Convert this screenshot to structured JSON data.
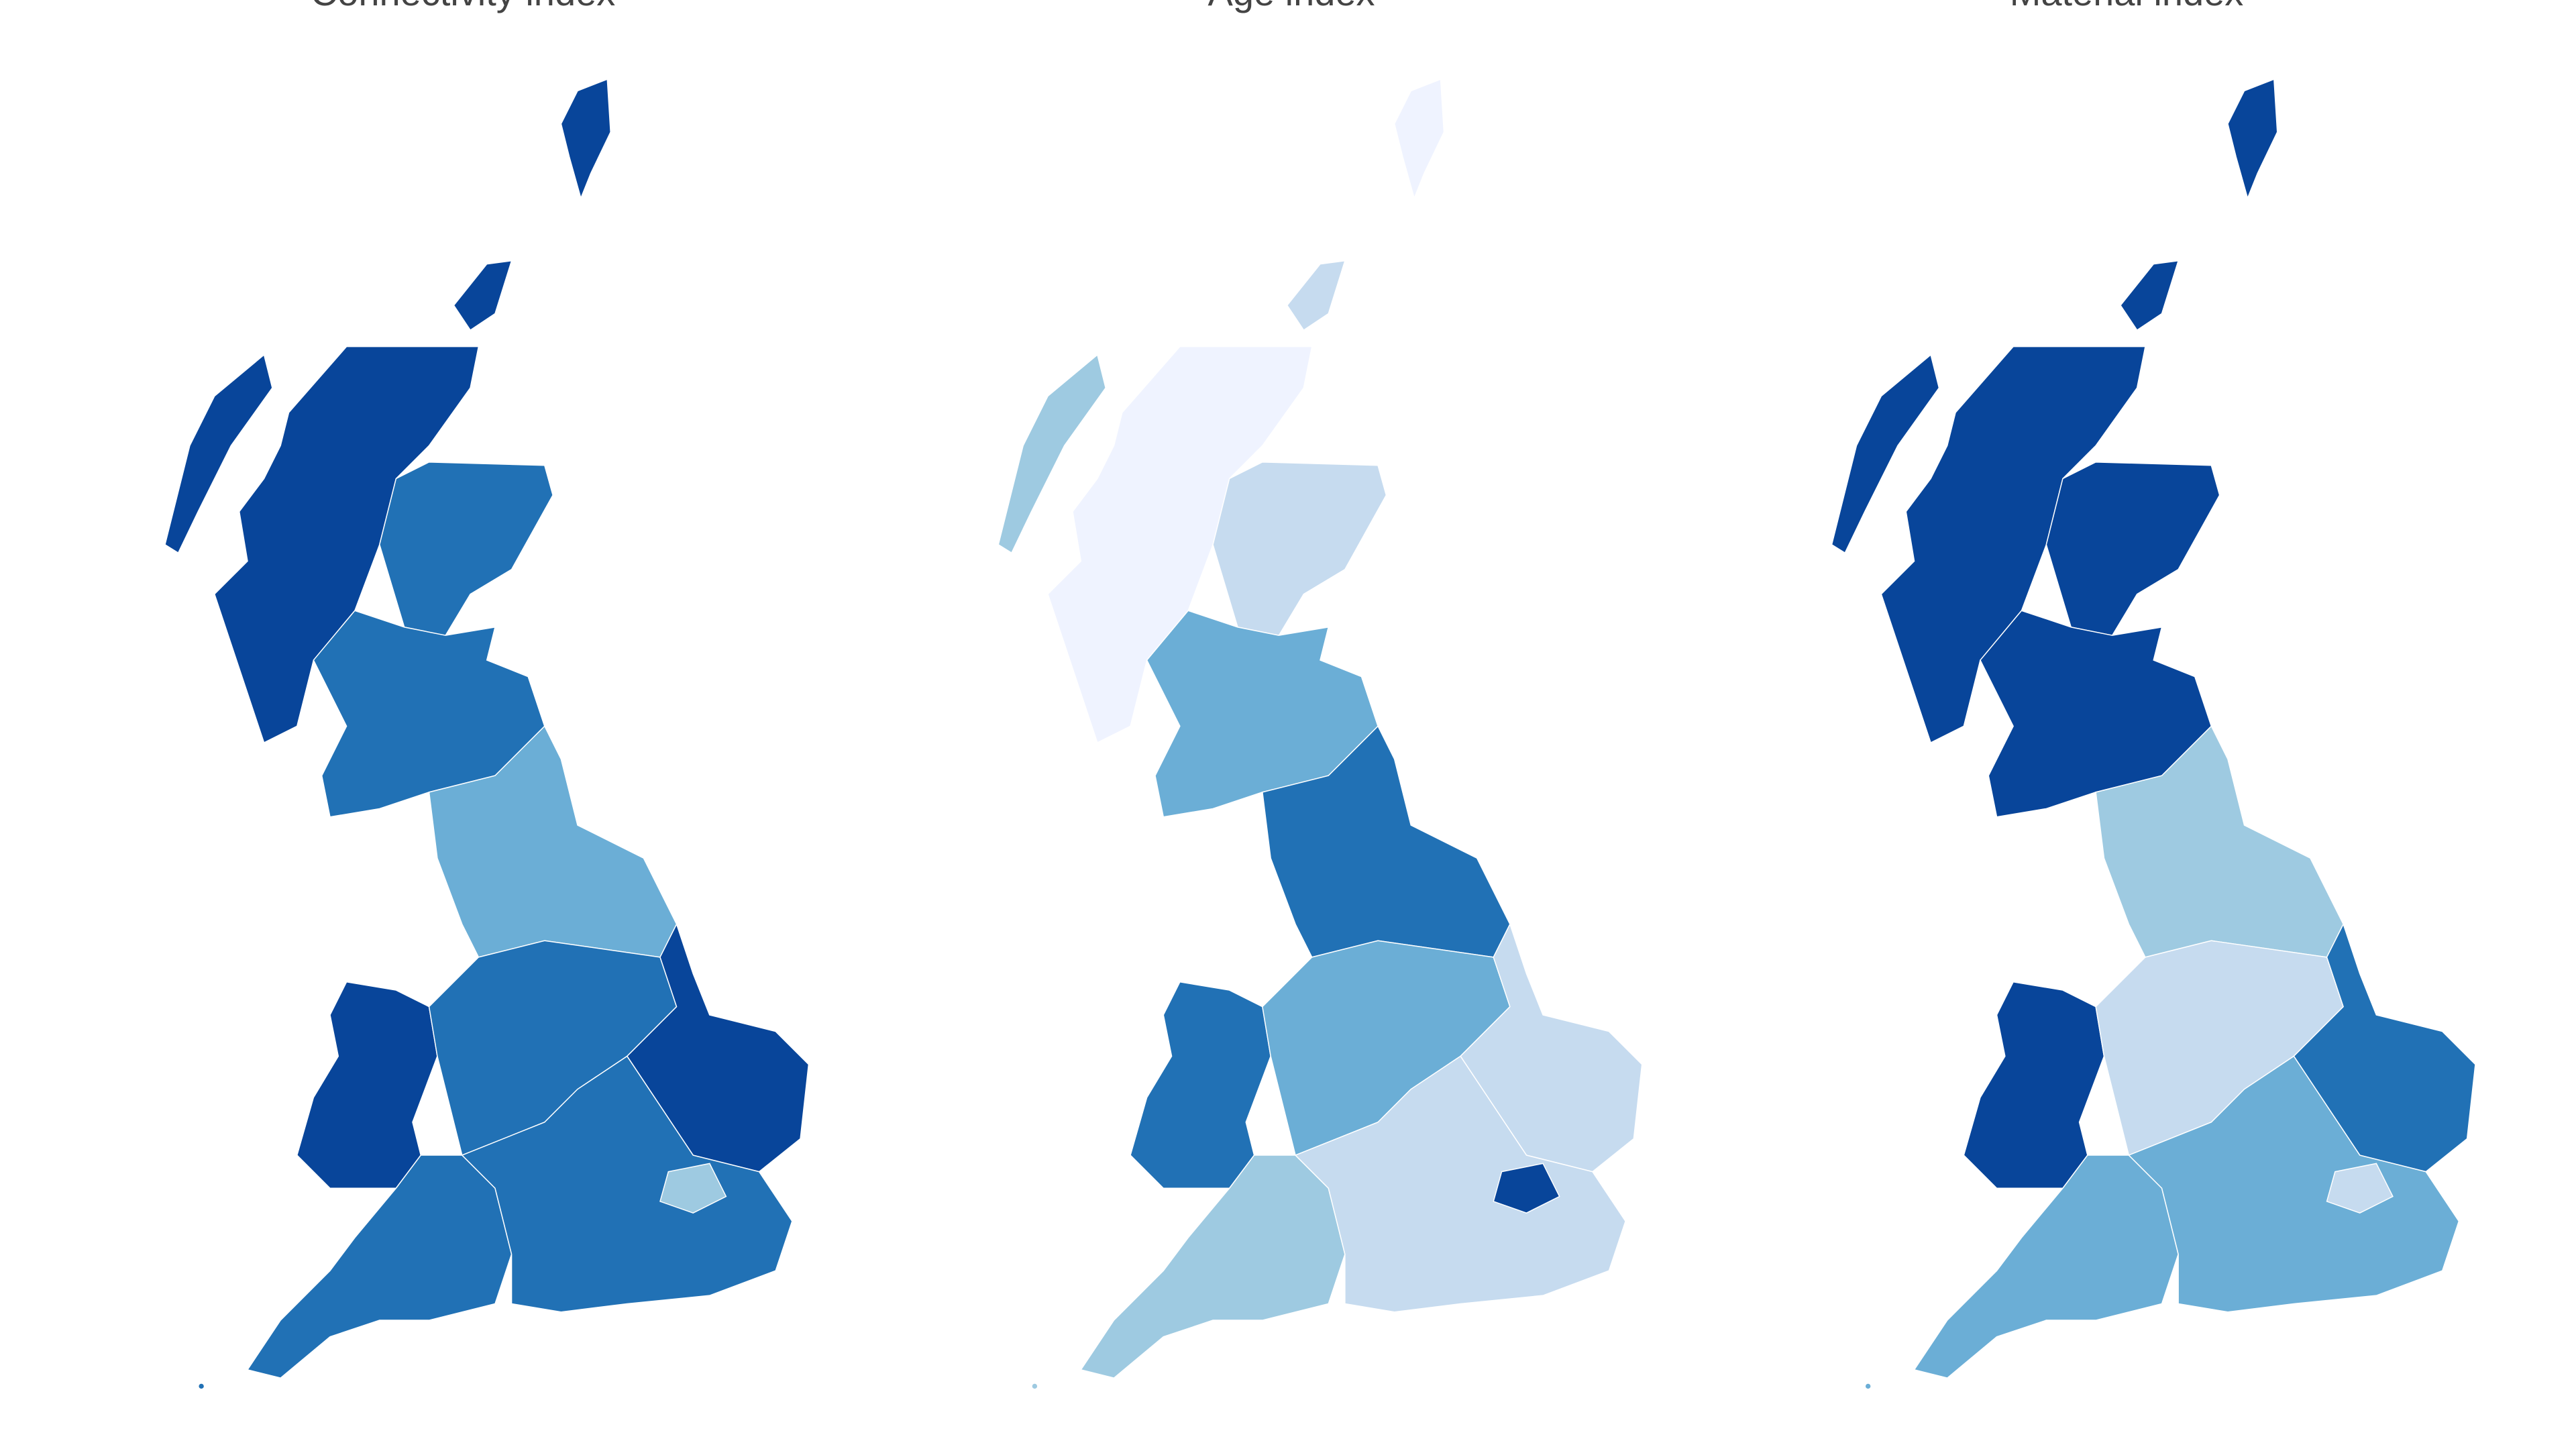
{
  "chart_data": {
    "type": "choropleth",
    "color_scale": [
      "#eff3ff",
      "#c6dbef",
      "#9ecae1",
      "#6baed6",
      "#2171b5",
      "#08459a"
    ],
    "maps": [
      {
        "title": "Connectivity index",
        "levels": [
          5,
          5,
          5,
          5,
          4,
          4,
          3,
          5,
          4,
          5,
          4,
          4,
          2
        ]
      },
      {
        "title": "Age index",
        "levels": [
          0,
          1,
          2,
          0,
          1,
          3,
          4,
          4,
          3,
          1,
          2,
          1,
          5
        ]
      },
      {
        "title": "Material index",
        "levels": [
          5,
          5,
          5,
          5,
          5,
          5,
          2,
          5,
          1,
          4,
          3,
          3,
          1
        ]
      }
    ]
  }
}
